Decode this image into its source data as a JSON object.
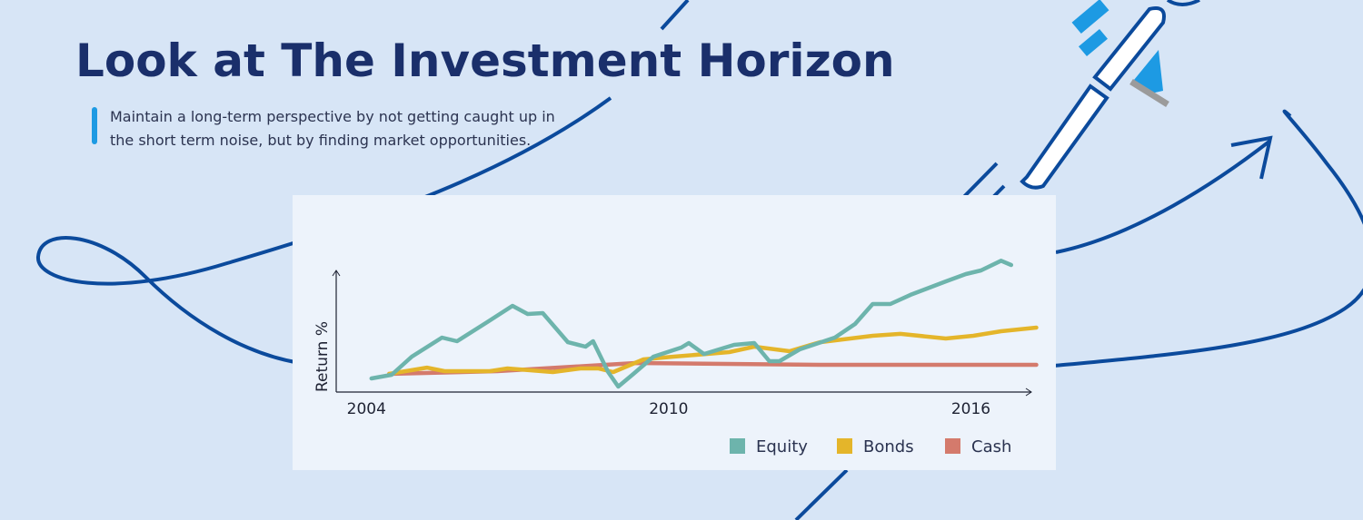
{
  "title": "Look at The Investment Horizon",
  "subtitle": [
    "Maintain a long-term perspective by not getting caught up in",
    "the short term noise, but by finding market opportunities."
  ],
  "chart_data": {
    "type": "line",
    "y_label": "Return %",
    "xlim": [
      2003.4,
      2017.2
    ],
    "xticks": [
      2004,
      2010,
      2016
    ],
    "ylim": [
      0,
      100
    ],
    "series": [
      {
        "name": "Equity",
        "color": "#6db4ac",
        "x": [
          2004.1,
          2004.5,
          2004.9,
          2005.5,
          2005.8,
          2006.4,
          2006.9,
          2007.2,
          2007.5,
          2008.0,
          2008.35,
          2008.5,
          2008.8,
          2009.0,
          2009.3,
          2009.7,
          2010.25,
          2010.4,
          2010.7,
          2011.3,
          2011.7,
          2012.0,
          2012.2,
          2012.6,
          2013.3,
          2013.7,
          2014.05,
          2014.4,
          2014.8,
          2015.5,
          2015.9,
          2016.2,
          2016.6,
          2016.8
        ],
        "values": [
          11.2,
          14.2,
          29.1,
          44.8,
          41.8,
          57.5,
          70.9,
          64.2,
          64.9,
          41,
          37.3,
          41.8,
          16.4,
          4.5,
          14.9,
          29.1,
          36.6,
          40.3,
          31.3,
          38.8,
          40.3,
          25.4,
          25.4,
          35.1,
          44.8,
          56,
          72.4,
          72.4,
          79.9,
          91,
          97,
          100,
          108,
          104.5
        ]
      },
      {
        "name": "Bonds",
        "color": "#e4b52a",
        "x": [
          2004.45,
          2005.2,
          2005.55,
          2006.45,
          2006.8,
          2007.7,
          2008.25,
          2008.6,
          2008.9,
          2009.5,
          2010.1,
          2011.2,
          2011.7,
          2012.4,
          2013.0,
          2014.05,
          2014.6,
          2015.5,
          2016.05,
          2016.6,
          2017.3
        ],
        "values": [
          14.9,
          20.1,
          17.2,
          17.2,
          19.4,
          16.4,
          19.4,
          19.4,
          16.4,
          26.9,
          29.1,
          32.8,
          37.3,
          33.6,
          41,
          46.3,
          47.8,
          44,
          46.3,
          50,
          53
        ]
      },
      {
        "name": "Cash",
        "color": "#d47a6c",
        "x": [
          2004.45,
          2006.6,
          2008.4,
          2009.35,
          2011.15,
          2013.0,
          2017.3
        ],
        "values": [
          14.9,
          17.2,
          21.6,
          23.9,
          23.1,
          22.4,
          22.4
        ]
      }
    ]
  }
}
